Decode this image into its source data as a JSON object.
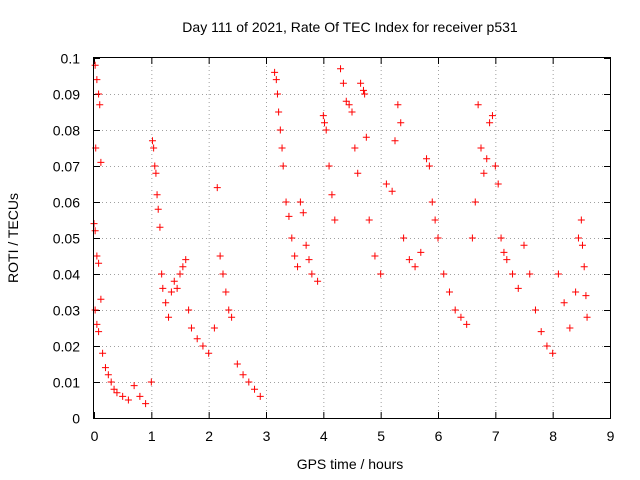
{
  "chart_data": {
    "type": "scatter",
    "title": "Day 111 of 2021, Rate Of TEC Index for receiver p531",
    "xlabel": "GPS time / hours",
    "ylabel": "ROTI / TECUs",
    "xlim": [
      0,
      9
    ],
    "ylim": [
      0,
      0.1
    ],
    "x_ticks": [
      "0",
      "1",
      "2",
      "3",
      "4",
      "5",
      "6",
      "7",
      "8",
      "9"
    ],
    "y_ticks": [
      "0",
      "0.01",
      "0.02",
      "0.03",
      "0.04",
      "0.05",
      "0.06",
      "0.07",
      "0.08",
      "0.09",
      "0.1"
    ],
    "grid": true,
    "marker": "+",
    "series": [
      {
        "color": "#ff0000",
        "points": [
          [
            0.02,
            0.098
          ],
          [
            0.05,
            0.094
          ],
          [
            0.08,
            0.09
          ],
          [
            0.1,
            0.087
          ],
          [
            0.03,
            0.075
          ],
          [
            0.12,
            0.071
          ],
          [
            0.0,
            0.054
          ],
          [
            0.02,
            0.052
          ],
          [
            0.05,
            0.045
          ],
          [
            0.08,
            0.043
          ],
          [
            0.02,
            0.03
          ],
          [
            0.05,
            0.026
          ],
          [
            0.08,
            0.024
          ],
          [
            0.12,
            0.033
          ],
          [
            0.15,
            0.018
          ],
          [
            0.2,
            0.014
          ],
          [
            0.25,
            0.012
          ],
          [
            0.3,
            0.01
          ],
          [
            0.35,
            0.008
          ],
          [
            0.4,
            0.007
          ],
          [
            0.5,
            0.006
          ],
          [
            0.6,
            0.005
          ],
          [
            0.7,
            0.009
          ],
          [
            0.8,
            0.006
          ],
          [
            0.9,
            0.004
          ],
          [
            1.0,
            0.01
          ],
          [
            1.02,
            0.077
          ],
          [
            1.04,
            0.075
          ],
          [
            1.06,
            0.07
          ],
          [
            1.08,
            0.068
          ],
          [
            1.1,
            0.062
          ],
          [
            1.12,
            0.058
          ],
          [
            1.15,
            0.053
          ],
          [
            1.18,
            0.04
          ],
          [
            1.2,
            0.036
          ],
          [
            1.25,
            0.032
          ],
          [
            1.3,
            0.028
          ],
          [
            1.35,
            0.035
          ],
          [
            1.4,
            0.038
          ],
          [
            1.45,
            0.036
          ],
          [
            1.5,
            0.04
          ],
          [
            1.55,
            0.042
          ],
          [
            1.6,
            0.044
          ],
          [
            1.65,
            0.03
          ],
          [
            1.7,
            0.025
          ],
          [
            1.8,
            0.022
          ],
          [
            1.9,
            0.02
          ],
          [
            2.0,
            0.018
          ],
          [
            2.1,
            0.025
          ],
          [
            2.15,
            0.064
          ],
          [
            2.2,
            0.045
          ],
          [
            2.25,
            0.04
          ],
          [
            2.3,
            0.035
          ],
          [
            2.35,
            0.03
          ],
          [
            2.4,
            0.028
          ],
          [
            2.5,
            0.015
          ],
          [
            2.6,
            0.012
          ],
          [
            2.7,
            0.01
          ],
          [
            2.8,
            0.008
          ],
          [
            2.9,
            0.006
          ],
          [
            3.15,
            0.096
          ],
          [
            3.18,
            0.094
          ],
          [
            3.2,
            0.09
          ],
          [
            3.22,
            0.085
          ],
          [
            3.25,
            0.08
          ],
          [
            3.28,
            0.075
          ],
          [
            3.3,
            0.07
          ],
          [
            3.35,
            0.06
          ],
          [
            3.4,
            0.056
          ],
          [
            3.45,
            0.05
          ],
          [
            3.5,
            0.045
          ],
          [
            3.55,
            0.042
          ],
          [
            3.6,
            0.06
          ],
          [
            3.65,
            0.057
          ],
          [
            3.7,
            0.048
          ],
          [
            3.75,
            0.044
          ],
          [
            3.8,
            0.04
          ],
          [
            3.9,
            0.038
          ],
          [
            4.0,
            0.084
          ],
          [
            4.02,
            0.082
          ],
          [
            4.05,
            0.08
          ],
          [
            4.1,
            0.07
          ],
          [
            4.15,
            0.062
          ],
          [
            4.2,
            0.055
          ],
          [
            4.3,
            0.097
          ],
          [
            4.35,
            0.093
          ],
          [
            4.4,
            0.088
          ],
          [
            4.45,
            0.087
          ],
          [
            4.5,
            0.085
          ],
          [
            4.55,
            0.075
          ],
          [
            4.6,
            0.068
          ],
          [
            4.65,
            0.093
          ],
          [
            4.7,
            0.091
          ],
          [
            4.72,
            0.09
          ],
          [
            4.75,
            0.078
          ],
          [
            4.8,
            0.055
          ],
          [
            4.9,
            0.045
          ],
          [
            5.0,
            0.04
          ],
          [
            5.1,
            0.065
          ],
          [
            5.2,
            0.063
          ],
          [
            5.25,
            0.077
          ],
          [
            5.3,
            0.087
          ],
          [
            5.35,
            0.082
          ],
          [
            5.4,
            0.05
          ],
          [
            5.5,
            0.044
          ],
          [
            5.6,
            0.042
          ],
          [
            5.7,
            0.046
          ],
          [
            5.8,
            0.072
          ],
          [
            5.85,
            0.07
          ],
          [
            5.9,
            0.06
          ],
          [
            5.95,
            0.055
          ],
          [
            6.0,
            0.05
          ],
          [
            6.1,
            0.04
          ],
          [
            6.2,
            0.035
          ],
          [
            6.3,
            0.03
          ],
          [
            6.4,
            0.028
          ],
          [
            6.5,
            0.026
          ],
          [
            6.6,
            0.05
          ],
          [
            6.65,
            0.06
          ],
          [
            6.7,
            0.087
          ],
          [
            6.75,
            0.075
          ],
          [
            6.8,
            0.068
          ],
          [
            6.85,
            0.072
          ],
          [
            6.9,
            0.082
          ],
          [
            6.95,
            0.084
          ],
          [
            7.0,
            0.07
          ],
          [
            7.05,
            0.065
          ],
          [
            7.1,
            0.05
          ],
          [
            7.15,
            0.046
          ],
          [
            7.2,
            0.044
          ],
          [
            7.3,
            0.04
          ],
          [
            7.4,
            0.036
          ],
          [
            7.5,
            0.048
          ],
          [
            7.6,
            0.04
          ],
          [
            7.7,
            0.03
          ],
          [
            7.8,
            0.024
          ],
          [
            7.9,
            0.02
          ],
          [
            8.0,
            0.018
          ],
          [
            8.1,
            0.04
          ],
          [
            8.2,
            0.032
          ],
          [
            8.3,
            0.025
          ],
          [
            8.4,
            0.035
          ],
          [
            8.45,
            0.05
          ],
          [
            8.5,
            0.055
          ],
          [
            8.52,
            0.048
          ],
          [
            8.55,
            0.042
          ],
          [
            8.58,
            0.034
          ],
          [
            8.6,
            0.028
          ]
        ]
      }
    ]
  }
}
